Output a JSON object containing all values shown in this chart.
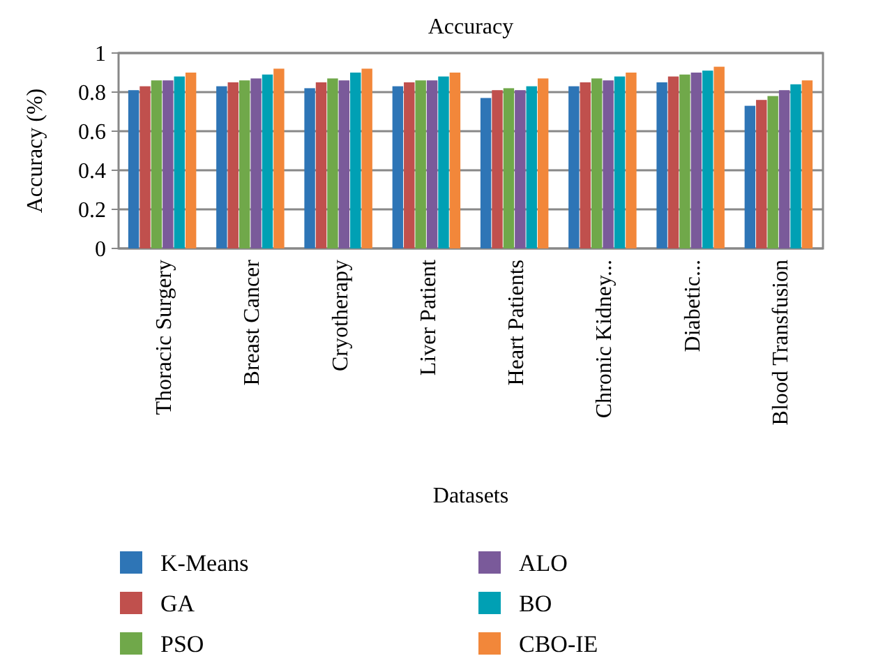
{
  "chart_data": {
    "type": "bar",
    "title": "Accuracy",
    "xlabel": "Datasets",
    "ylabel": "Accuracy (%)",
    "categories": [
      "Thoracic Surgery",
      "Breast Cancer",
      "Cryotherapy",
      "Liver Patient",
      "Heart Patients",
      "Chronic Kidney...",
      "Diabetic...",
      "Blood Transfusion"
    ],
    "series": [
      {
        "name": "K-Means",
        "color": "#2e75b6",
        "values": [
          0.81,
          0.83,
          0.82,
          0.83,
          0.77,
          0.83,
          0.85,
          0.73
        ]
      },
      {
        "name": "GA",
        "color": "#c0504d",
        "values": [
          0.83,
          0.85,
          0.85,
          0.85,
          0.81,
          0.85,
          0.88,
          0.76
        ]
      },
      {
        "name": "PSO",
        "color": "#70a84a",
        "values": [
          0.86,
          0.86,
          0.87,
          0.86,
          0.82,
          0.87,
          0.89,
          0.78
        ]
      },
      {
        "name": "ALO",
        "color": "#7a5a9a",
        "values": [
          0.86,
          0.87,
          0.86,
          0.86,
          0.81,
          0.86,
          0.9,
          0.81
        ]
      },
      {
        "name": "BO",
        "color": "#00a0b4",
        "values": [
          0.88,
          0.89,
          0.9,
          0.88,
          0.83,
          0.88,
          0.91,
          0.84
        ]
      },
      {
        "name": "CBO-IE",
        "color": "#f2873a",
        "values": [
          0.9,
          0.92,
          0.92,
          0.9,
          0.87,
          0.9,
          0.93,
          0.86
        ]
      }
    ],
    "ylim": [
      0,
      1
    ],
    "yticks": [
      0,
      {
        "value": 0.2,
        "label": "0.2"
      },
      {
        "value": 0.4,
        "label": "0.4"
      },
      {
        "value": 0.6,
        "label": "0.6"
      },
      {
        "value": 0.8,
        "label": "0.8"
      },
      1
    ],
    "grid": "y",
    "legend": "bottom"
  }
}
